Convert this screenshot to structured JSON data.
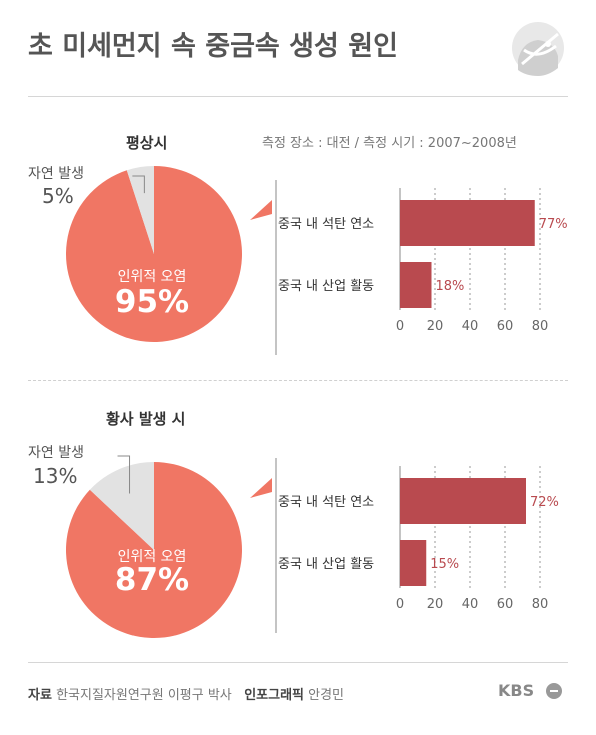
{
  "title": "초 미세먼지 속 중금속 생성 원인",
  "measure_info": "측정 장소 : 대전 / 측정 시기 : 2007~2008년",
  "colors": {
    "pie_main": "#f07664",
    "pie_minor": "#e2e2e2",
    "bar": "#b94a4f",
    "bar_label": "#b94a4f"
  },
  "sections": [
    {
      "title": "평상시",
      "natural_label": "자연 발생",
      "natural_pct": "5%",
      "human_label": "인위적 오염",
      "human_pct": "95%"
    },
    {
      "title": "황사 발생 시",
      "natural_label": "자연 발생",
      "natural_pct": "13%",
      "human_label": "인위적 오염",
      "human_pct": "87%"
    }
  ],
  "chart_data": [
    {
      "type": "pie",
      "title": "평상시",
      "slices": [
        {
          "label": "인위적 오염",
          "value": 95
        },
        {
          "label": "자연 발생",
          "value": 5
        }
      ]
    },
    {
      "type": "bar",
      "orientation": "horizontal",
      "categories": [
        "중국 내 석탄 연소",
        "중국 내 산업 활동"
      ],
      "values": [
        77,
        18
      ],
      "value_labels": [
        "77%",
        "18%"
      ],
      "xlim": [
        0,
        80
      ],
      "xticks": [
        "0",
        "20",
        "40",
        "60",
        "80"
      ],
      "grid": true
    },
    {
      "type": "pie",
      "title": "황사 발생 시",
      "slices": [
        {
          "label": "인위적 오염",
          "value": 87
        },
        {
          "label": "자연 발생",
          "value": 13
        }
      ]
    },
    {
      "type": "bar",
      "orientation": "horizontal",
      "categories": [
        "중국 내 석탄 연소",
        "중국 내 산업 활동"
      ],
      "values": [
        72,
        15
      ],
      "value_labels": [
        "72%",
        "15%"
      ],
      "xlim": [
        0,
        80
      ],
      "xticks": [
        "0",
        "20",
        "40",
        "60",
        "80"
      ],
      "grid": true
    }
  ],
  "footer": {
    "source_label": "자료",
    "source_text": "한국지질자원연구원 이평구 박사",
    "graphic_label": "인포그래픽",
    "graphic_text": "안경민",
    "brand": "KBS"
  }
}
